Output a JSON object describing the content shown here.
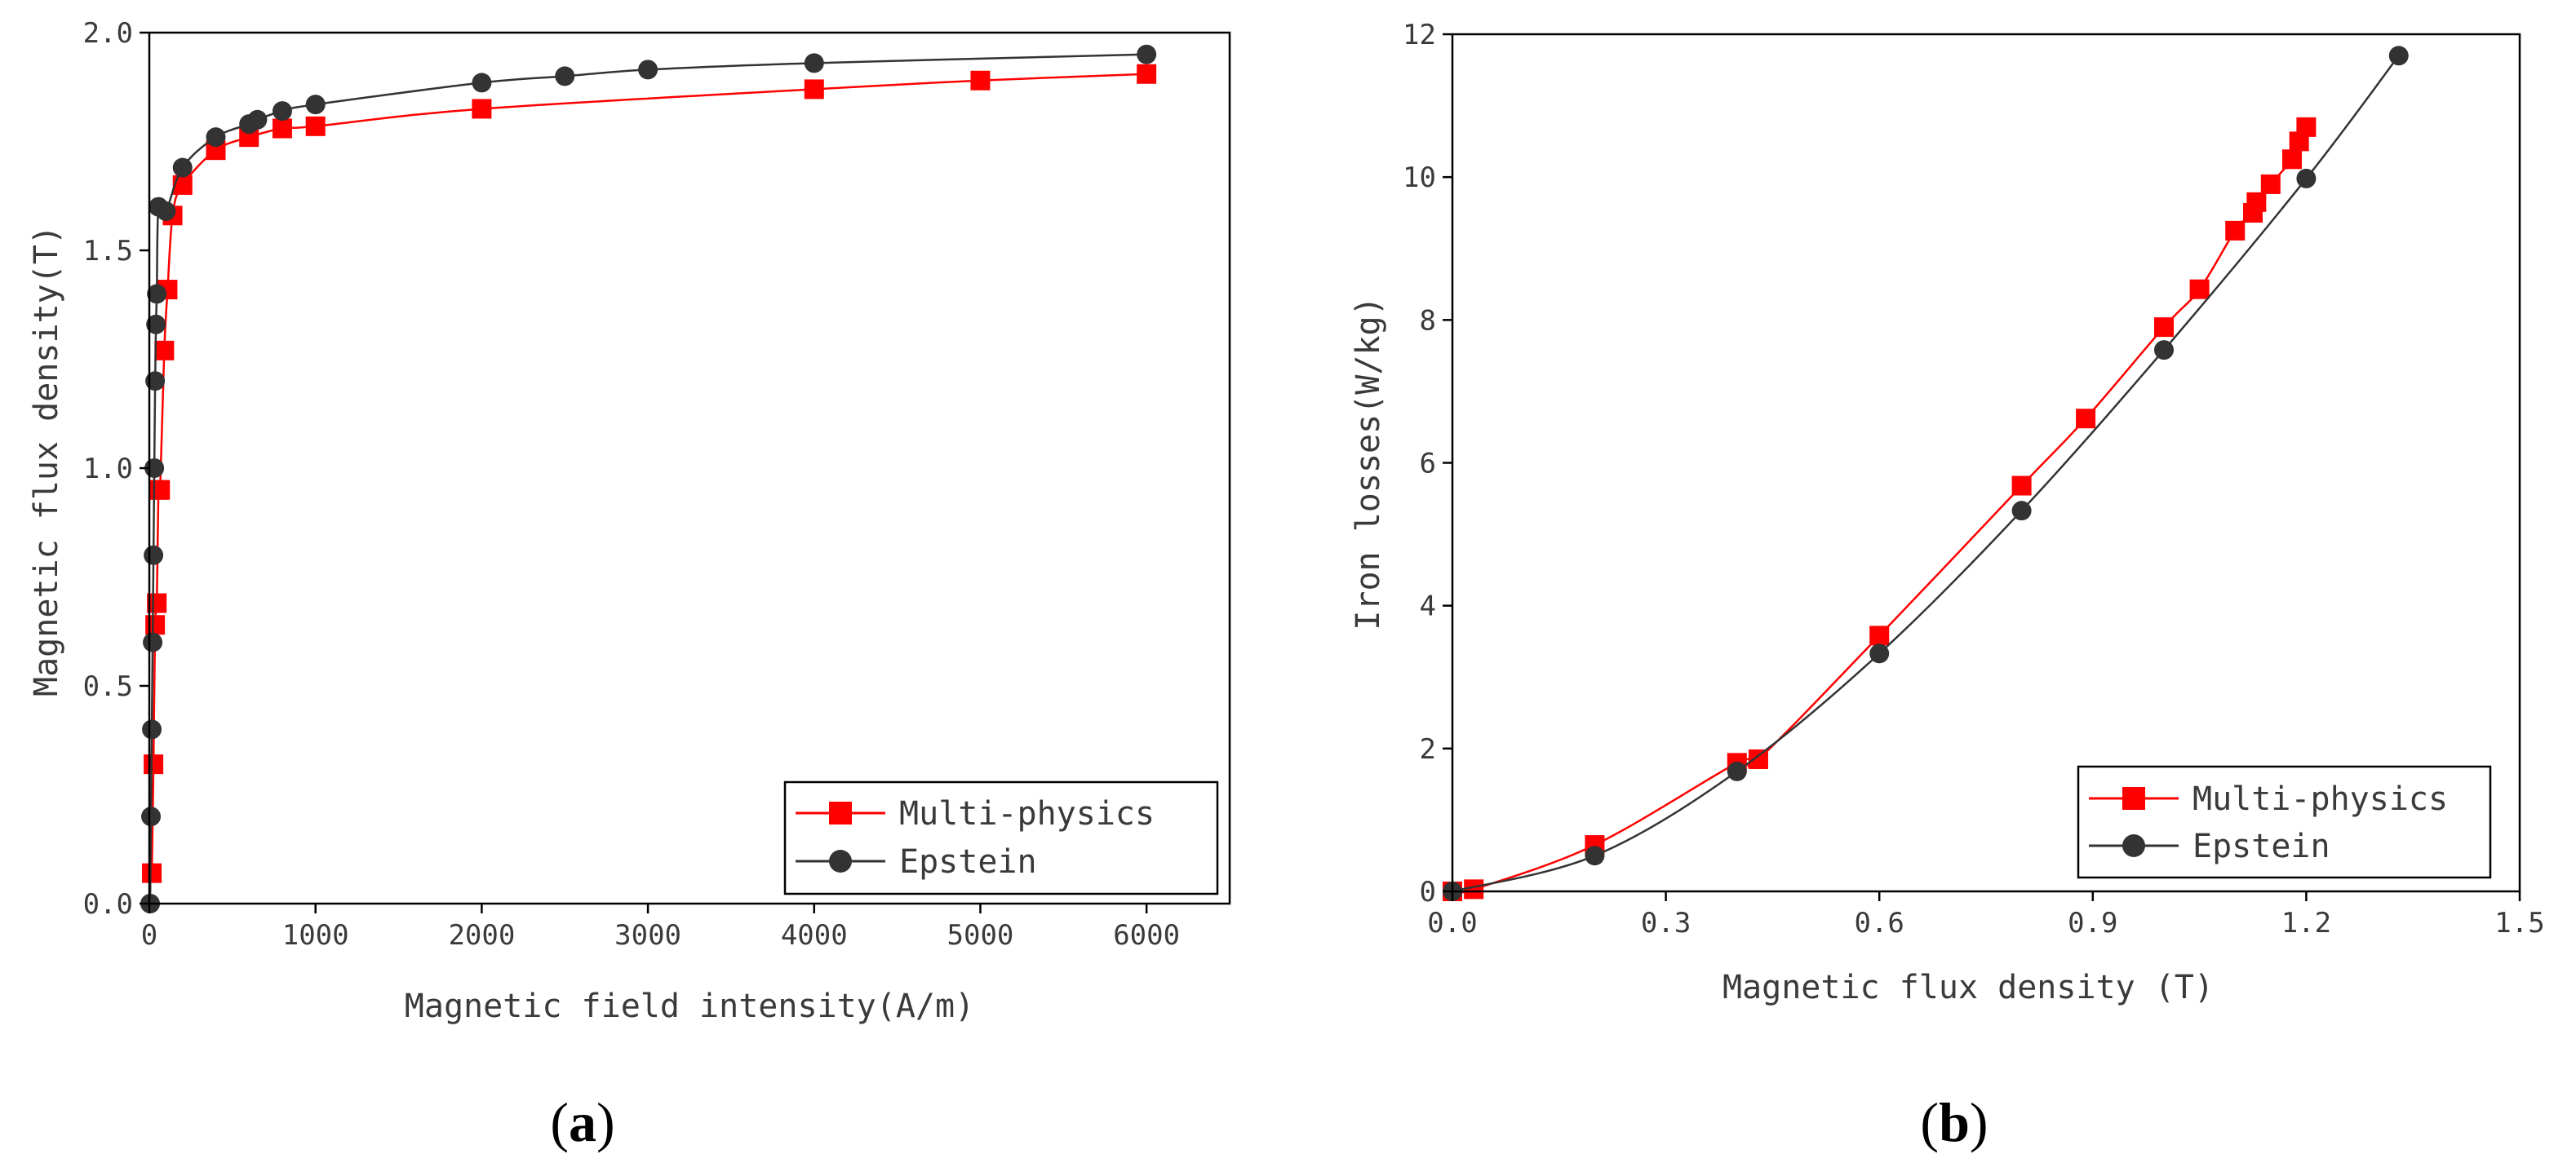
{
  "colors": {
    "multi_physics": "#ff0000",
    "epstein": "#333333",
    "axis": "#000000",
    "background": "#ffffff"
  },
  "chart_data": [
    {
      "panel": "(a)",
      "panel_letter": "a",
      "type": "line",
      "title": "",
      "xlabel": "Magnetic field intensity(A/m)",
      "ylabel": "Magnetic flux density(T)",
      "xlim": [
        0,
        6500
      ],
      "ylim": [
        0.0,
        2.0
      ],
      "xticks": [
        0,
        1000,
        2000,
        3000,
        4000,
        5000,
        6000
      ],
      "xtick_labels": [
        "0",
        "1000",
        "2000",
        "3000",
        "4000",
        "5000",
        "6000"
      ],
      "yticks": [
        0.0,
        0.5,
        1.0,
        1.5,
        2.0
      ],
      "ytick_labels": [
        "0.0",
        "0.5",
        "1.0",
        "1.5",
        "2.0"
      ],
      "grid": false,
      "legend_position": "bottom-right",
      "series": [
        {
          "name": "Multi-physics",
          "marker": "square",
          "color": "#ff0000",
          "x": [
            15,
            25,
            35,
            45,
            55,
            65,
            90,
            110,
            140,
            200,
            400,
            600,
            800,
            1000,
            2000,
            4000,
            5000,
            6000
          ],
          "y": [
            0.07,
            0.32,
            0.64,
            0.69,
            0.95,
            0.95,
            1.27,
            1.41,
            1.58,
            1.65,
            1.73,
            1.76,
            1.78,
            1.785,
            1.825,
            1.87,
            1.89,
            1.905
          ]
        },
        {
          "name": "Epstein",
          "marker": "circle",
          "color": "#333333",
          "x": [
            5,
            10,
            15,
            20,
            25,
            30,
            35,
            40,
            45,
            55,
            100,
            200,
            400,
            600,
            650,
            800,
            1000,
            2000,
            2500,
            3000,
            4000,
            6000
          ],
          "y": [
            0.0,
            0.2,
            0.4,
            0.6,
            0.8,
            1.0,
            1.2,
            1.33,
            1.4,
            1.6,
            1.59,
            1.69,
            1.76,
            1.79,
            1.8,
            1.82,
            1.835,
            1.885,
            1.9,
            1.915,
            1.93,
            1.95
          ]
        }
      ]
    },
    {
      "panel": "(b)",
      "panel_letter": "b",
      "type": "line",
      "title": "",
      "xlabel": "Magnetic flux density (T)",
      "ylabel": "Iron losses(W/kg)",
      "xlim": [
        0.0,
        1.5
      ],
      "ylim": [
        0,
        12
      ],
      "xticks": [
        0.0,
        0.3,
        0.6,
        0.9,
        1.2,
        1.5
      ],
      "xtick_labels": [
        "0.0",
        "0.3",
        "0.6",
        "0.9",
        "1.2",
        "1.5"
      ],
      "yticks": [
        0,
        2,
        4,
        6,
        8,
        10,
        12
      ],
      "ytick_labels": [
        "0",
        "2",
        "4",
        "6",
        "8",
        "10",
        "12"
      ],
      "grid": false,
      "legend_position": "bottom-right",
      "series": [
        {
          "name": "Multi-physics",
          "marker": "square",
          "color": "#ff0000",
          "x": [
            0.0,
            0.03,
            0.2,
            0.4,
            0.43,
            0.6,
            0.8,
            0.89,
            1.0,
            1.05,
            1.1,
            1.125,
            1.13,
            1.15,
            1.18,
            1.19,
            1.2
          ],
          "y": [
            0.0,
            0.03,
            0.65,
            1.8,
            1.85,
            3.58,
            5.68,
            6.62,
            7.9,
            8.43,
            9.25,
            9.5,
            9.65,
            9.9,
            10.25,
            10.5,
            10.7
          ]
        },
        {
          "name": "Epstein",
          "marker": "circle",
          "color": "#333333",
          "x": [
            0.0,
            0.2,
            0.4,
            0.6,
            0.8,
            1.0,
            1.2,
            1.33
          ],
          "y": [
            0.0,
            0.5,
            1.68,
            3.33,
            5.33,
            7.58,
            9.98,
            11.7
          ]
        }
      ]
    }
  ]
}
